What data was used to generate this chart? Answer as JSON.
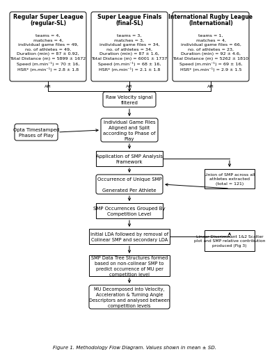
{
  "title": "Figure 1. Methodology Flow Diagram. Values shown in mean ± SD.",
  "box1_title1": "Regular Super League",
  "box1_title2": "(regular-SL)",
  "box1_body": "teams = 4,\nmatches = 4,\nindividual game files = 49,\nno. of athletes = 49,\nDuration (min) = 87 ± 0.92,\nTotal Distance (m) = 5899 ± 1672\nSpeed (m.min⁻¹) = 70 ± 16,\nHSR* (m.min⁻¹) = 2.8 ± 1.8",
  "box2_title1": "Super League Finals",
  "box2_title2": "(final-SL)",
  "box2_body": "teams = 3,\nmatches = 3,\nindividual game files = 34,\nno. of athletes = 34,\nDuration (min) = 87 ± 1.6,\nTotal Distance (m) = 6001 ± 1737\nSpeed (m.min⁻¹) = 68 ± 16,\nHSR* (m.min⁻¹) = 2.1 ± 1.8",
  "box3_title1": "International Rugby League",
  "box3_title2": "(International)",
  "box3_body": "teams = 1,\nmatches = 4,\nindividual game files = 66,\nno. of athletes = 23,\nDuration (min) = 92 ± 4.6,\nTotal Distance (m) = 5262 ± 1810\nSpeed (m.min⁻¹) = 69 ± 16,\nHSR* (m.min⁻¹) = 2.9 ± 1.5",
  "node_raw": "Raw Velocity signal\nfiltered",
  "node_individual": "Individual Game Files\nAligned and Split\naccording to Phase of\nPlay",
  "node_opta": "Opta Timestamped\nPhases of Play",
  "node_smp": "Application of SMP Analysis\nFramework",
  "node_union": "Union of SMP across all\nathletes extracted\n(total = 121)",
  "node_occurrence": "Occurrence of Unique SMP\n\nGenerated Per Athlete",
  "node_grouped": "SMP Occurrences Grouped By\nCompetition Level",
  "node_lda": "Initial LDA followed by removal of\nColinear SMP and secondary LDA",
  "node_scatter": "Linear Discriminant 1&2 Scatter\nplot and SMP relative contribution\nproduced (Fig 3)",
  "node_datatree": "SMP Data Tree Structures formed\nbased on non-colinear SMP to\npredict occurrence of MU per\ncompetition level",
  "node_decomposed": "MU Decomposed into Velocity,\nAcceleration & Turning Angle\nDescriptors and analysed between\ncompetition levels"
}
